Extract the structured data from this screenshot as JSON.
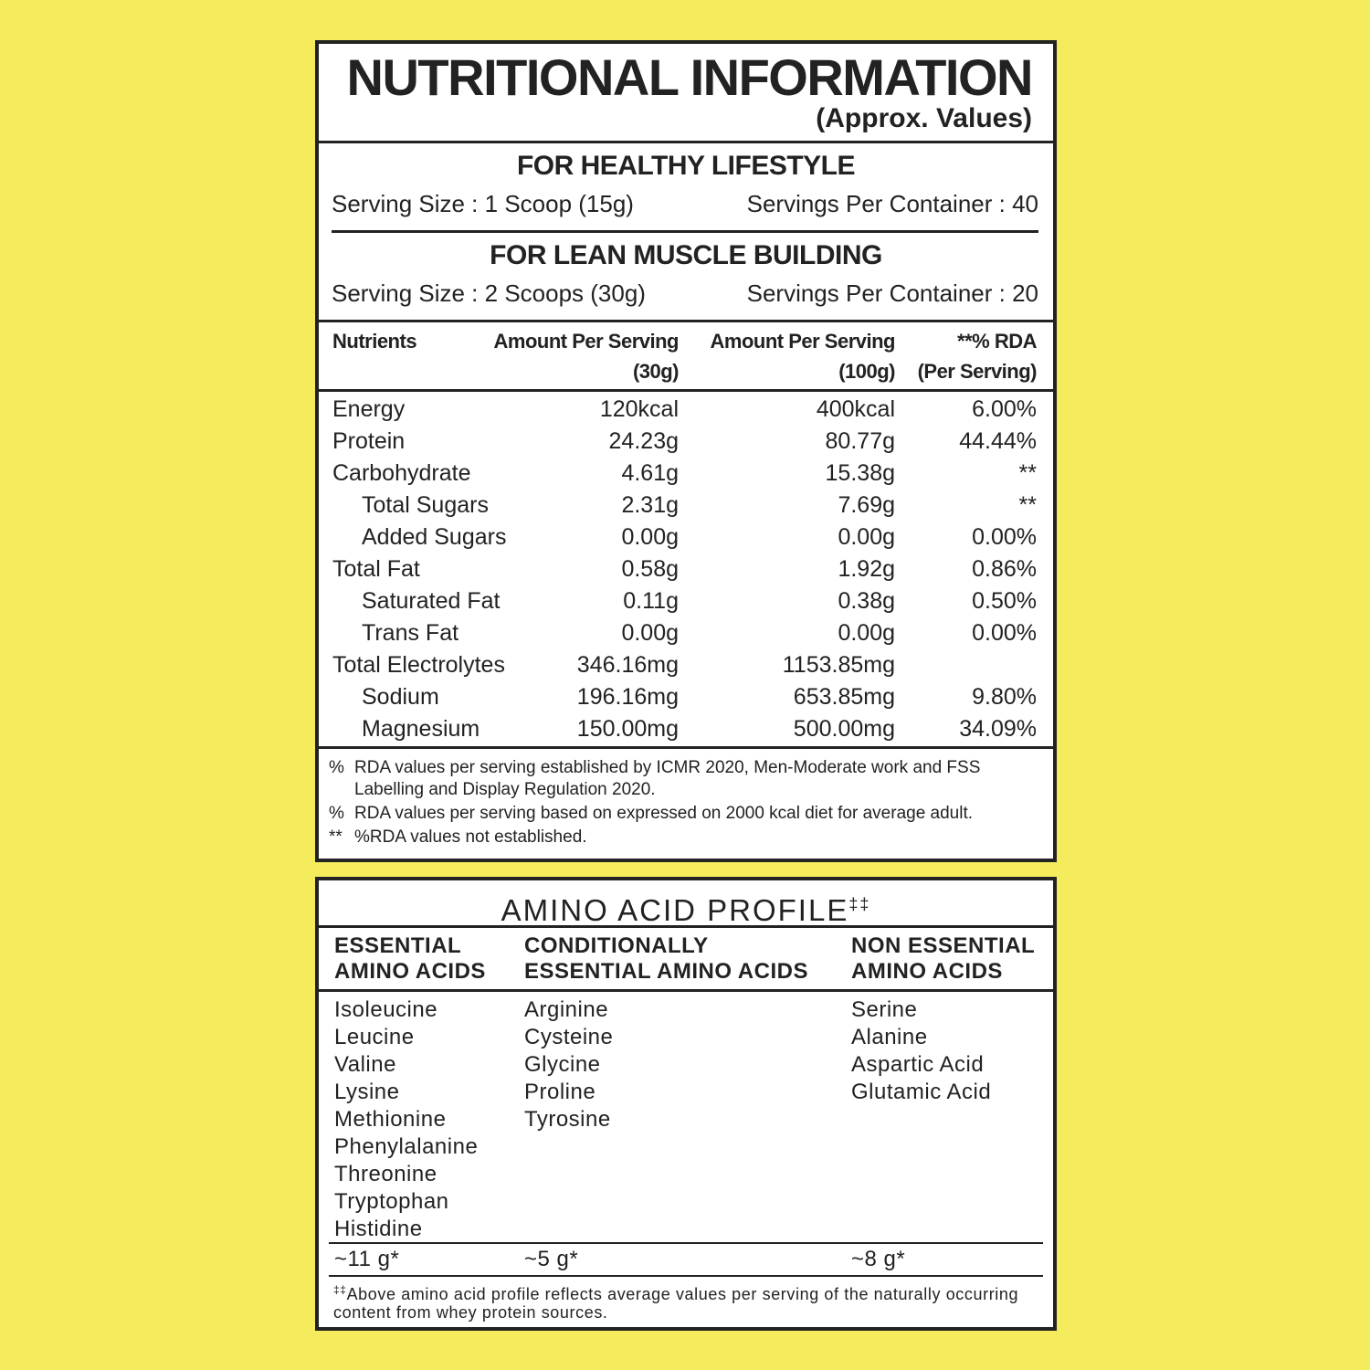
{
  "title": "NUTRITIONAL INFORMATION",
  "subtitle": "(Approx. Values)",
  "servings": [
    {
      "heading": "FOR HEALTHY LIFESTYLE",
      "serving_size": "Serving Size : 1 Scoop (15g)",
      "servings_per_container": "Servings Per Container : 40"
    },
    {
      "heading": "FOR LEAN MUSCLE BUILDING",
      "serving_size": "Serving Size : 2 Scoops (30g)",
      "servings_per_container": "Servings Per Container : 20"
    }
  ],
  "table": {
    "header": [
      [
        "Nutrients"
      ],
      [
        "Amount Per Serving",
        "(30g)"
      ],
      [
        "Amount Per Serving",
        "(100g)"
      ],
      [
        "**% RDA",
        "(Per Serving)"
      ]
    ],
    "rows": [
      {
        "level": 0,
        "cells": [
          "Energy",
          "120kcal",
          "400kcal",
          "6.00%"
        ]
      },
      {
        "level": 0,
        "cells": [
          "Protein",
          "24.23g",
          "80.77g",
          "44.44%"
        ]
      },
      {
        "level": 0,
        "cells": [
          "Carbohydrate",
          "4.61g",
          "15.38g",
          "**"
        ]
      },
      {
        "level": 1,
        "cells": [
          "Total Sugars",
          "2.31g",
          "7.69g",
          "**"
        ]
      },
      {
        "level": 1,
        "cells": [
          "Added Sugars",
          "0.00g",
          "0.00g",
          "0.00%"
        ]
      },
      {
        "level": 0,
        "cells": [
          "Total Fat",
          "0.58g",
          "1.92g",
          "0.86%"
        ]
      },
      {
        "level": 1,
        "cells": [
          "Saturated Fat",
          "0.11g",
          "0.38g",
          "0.50%"
        ]
      },
      {
        "level": 1,
        "cells": [
          "Trans Fat",
          "0.00g",
          "0.00g",
          "0.00%"
        ]
      },
      {
        "level": 0,
        "cells": [
          "Total Electrolytes",
          "346.16mg",
          "1153.85mg"
        ]
      },
      {
        "level": 1,
        "cells": [
          "Sodium",
          "196.16mg",
          "653.85mg",
          "9.80%"
        ]
      },
      {
        "level": 1,
        "cells": [
          "Magnesium",
          "150.00mg",
          "500.00mg",
          "34.09%"
        ]
      }
    ]
  },
  "footnotes": [
    {
      "mark": "%",
      "text": "RDA values per serving established by ICMR 2020, Men-Moderate work and FSS Labelling and Display Regulation 2020."
    },
    {
      "mark": "%",
      "text": "RDA values per serving based on expressed on 2000 kcal diet for average adult."
    },
    {
      "mark": "**",
      "text": "%RDA values not established."
    }
  ],
  "amino": {
    "title": "AMINO ACID PROFILE",
    "title_mark": "‡‡",
    "columns": [
      {
        "heading": [
          "ESSENTIAL",
          "AMINO ACIDS"
        ],
        "items": [
          "Isoleucine",
          "Leucine",
          "Valine",
          "Lysine",
          "Methionine",
          "Phenylalanine",
          "Threonine",
          "Tryptophan",
          "Histidine"
        ],
        "total": "~11 g*"
      },
      {
        "heading": [
          "CONDITIONALLY",
          "ESSENTIAL AMINO ACIDS"
        ],
        "items": [
          "Arginine",
          "Cysteine",
          "Glycine",
          "Proline",
          "Tyrosine"
        ],
        "total": "~5 g*"
      },
      {
        "heading": [
          "NON ESSENTIAL",
          "AMINO ACIDS"
        ],
        "items": [
          "Serine",
          "Alanine",
          "Aspartic Acid",
          "Glutamic Acid"
        ],
        "total": "~8 g*"
      }
    ],
    "note": {
      "mark": "‡‡",
      "text": "Above amino acid profile reflects average values per serving of the naturally occurring content from whey protein sources."
    }
  }
}
